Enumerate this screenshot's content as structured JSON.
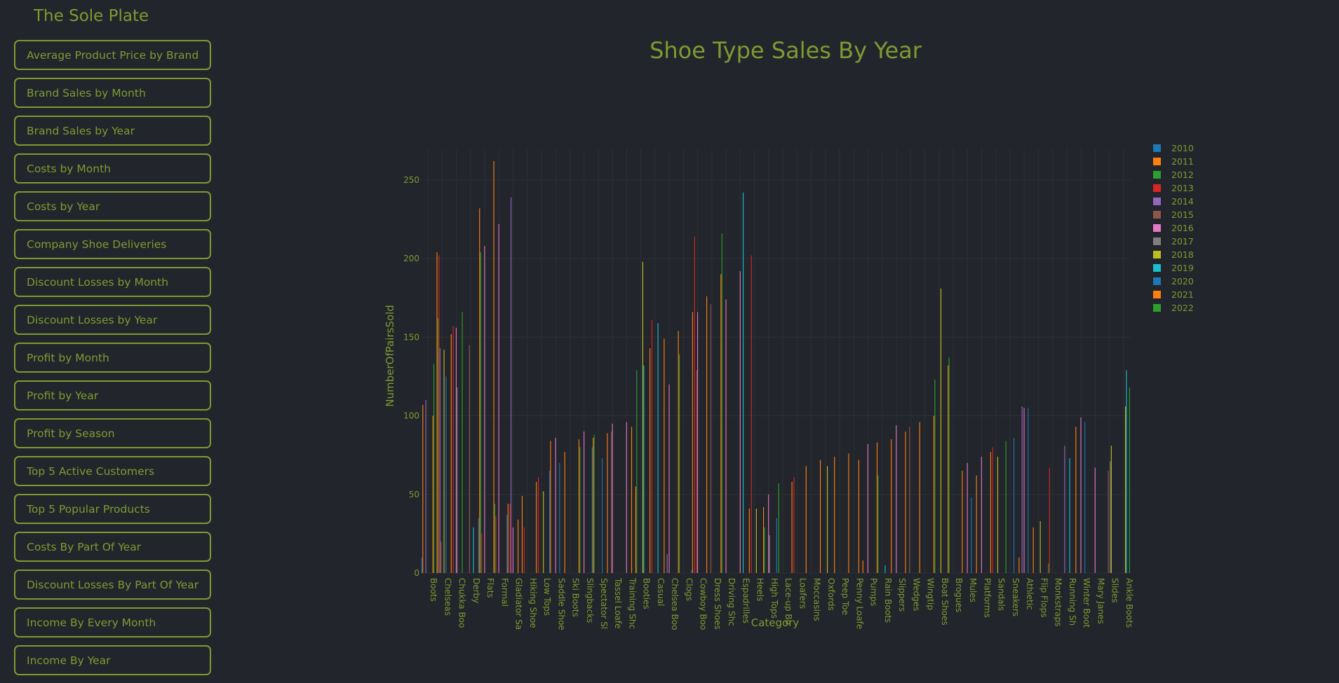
{
  "app": {
    "title": "The Sole Plate"
  },
  "nav": [
    {
      "label": "Average Product Price by Brand"
    },
    {
      "label": "Brand Sales by Month"
    },
    {
      "label": "Brand Sales by Year"
    },
    {
      "label": "Costs by Month"
    },
    {
      "label": "Costs by Year"
    },
    {
      "label": "Company Shoe Deliveries"
    },
    {
      "label": "Discount Losses by Month"
    },
    {
      "label": "Discount Losses by Year"
    },
    {
      "label": "Profit by Month"
    },
    {
      "label": "Profit by Year"
    },
    {
      "label": "Profit by Season"
    },
    {
      "label": "Top 5 Active Customers"
    },
    {
      "label": "Top 5 Popular Products"
    },
    {
      "label": "Costs By Part Of Year"
    },
    {
      "label": "Discount Losses By Part Of Year"
    },
    {
      "label": "Income By Every Month"
    },
    {
      "label": "Income By Year"
    }
  ],
  "colors": {
    "accent": "#7e9a32",
    "background": "#22252b",
    "grid": "#2c3033"
  },
  "chart_data": {
    "type": "bar",
    "title": "Shoe Type Sales By Year",
    "xlabel": "Category",
    "ylabel": "NumberOfPairsSold",
    "ylim": [
      0,
      270
    ],
    "yticks": [
      0,
      50,
      100,
      150,
      200,
      250
    ],
    "legend_position": "top-right",
    "categories": [
      "Boots",
      "Chelseas",
      "Chukka Boo",
      "Derby",
      "Flats",
      "Formal",
      "Gladiator Sa",
      "Hiking Shoe",
      "Low Tops",
      "Saddle Shoe",
      "Ski Boots",
      "Slingbacks",
      "Spectator Sl",
      "Tassel Loafe",
      "Training Shc",
      "Booties",
      "Casual",
      "Chelsea Boo",
      "Clogs",
      "Cowboy Boo",
      "Dress Shoes",
      "Driving Shc",
      "Espadrilles",
      "Heels",
      "High Tops",
      "Lace-up Bo",
      "Loafers",
      "Moccasins",
      "Oxfords",
      "Peep Toe",
      "Penny Loafe",
      "Pumps",
      "Rain Boots",
      "Slippers",
      "Wedges",
      "Wingtip",
      "Boat Shoes",
      "Brogues",
      "Mules",
      "Platforms",
      "Sandals",
      "Sneakers",
      "Athletic",
      "Flip Flops",
      "Monkstraps",
      "Running Sh",
      "Winter Boot",
      "Mary Janes",
      "Slides",
      "Ankle Boots"
    ],
    "series": [
      {
        "name": "2010",
        "color": "#1f77b4",
        "values": [
          10,
          0,
          0,
          0,
          35,
          0,
          37,
          0,
          0,
          65,
          0,
          0,
          80,
          0,
          0,
          0,
          0,
          0,
          0,
          2,
          0,
          0,
          0,
          0,
          0,
          35,
          0,
          0,
          0,
          0,
          0,
          0,
          0,
          0,
          0,
          0,
          0,
          0,
          0,
          0,
          0,
          0,
          0,
          0,
          0,
          0,
          0,
          0,
          0,
          0
        ]
      },
      {
        "name": "2011",
        "color": "#ff7f0e",
        "values": [
          107,
          204,
          152,
          0,
          232,
          262,
          44,
          49,
          58,
          84,
          77,
          85,
          86,
          89,
          0,
          55,
          143,
          149,
          154,
          166,
          176,
          190,
          0,
          41,
          42,
          0,
          58,
          68,
          72,
          74,
          76,
          8,
          83,
          85,
          90,
          96,
          100,
          132,
          65,
          62,
          77,
          0,
          10,
          29,
          0,
          0,
          93,
          0,
          0,
          0
        ]
      },
      {
        "name": "2012",
        "color": "#2ca02c",
        "values": [
          0,
          162,
          0,
          0,
          204,
          44,
          0,
          0,
          0,
          0,
          0,
          80,
          88,
          0,
          0,
          129,
          0,
          0,
          139,
          0,
          0,
          216,
          0,
          0,
          29,
          57,
          0,
          0,
          0,
          0,
          0,
          0,
          62,
          0,
          0,
          0,
          123,
          137,
          0,
          0,
          0,
          84,
          0,
          0,
          6,
          0,
          0,
          0,
          0,
          0
        ]
      },
      {
        "name": "2013",
        "color": "#d62728",
        "values": [
          0,
          202,
          157,
          0,
          25,
          36,
          44,
          29,
          61,
          0,
          0,
          0,
          0,
          0,
          0,
          0,
          161,
          0,
          0,
          214,
          0,
          0,
          0,
          202,
          0,
          0,
          61,
          0,
          0,
          0,
          0,
          0,
          0,
          0,
          0,
          0,
          0,
          0,
          0,
          0,
          80,
          0,
          0,
          0,
          67,
          0,
          0,
          0,
          0,
          0
        ]
      },
      {
        "name": "2014",
        "color": "#9467bd",
        "values": [
          110,
          143,
          0,
          0,
          0,
          0,
          239,
          0,
          0,
          0,
          0,
          0,
          0,
          0,
          0,
          0,
          0,
          12,
          0,
          0,
          0,
          0,
          0,
          0,
          0,
          0,
          0,
          0,
          0,
          0,
          0,
          0,
          0,
          0,
          0,
          0,
          0,
          0,
          0,
          0,
          0,
          0,
          106,
          0,
          0,
          81,
          0,
          0,
          0,
          0
        ]
      },
      {
        "name": "2015",
        "color": "#8c564b",
        "values": [
          0,
          20,
          0,
          145,
          0,
          0,
          0,
          0,
          0,
          0,
          0,
          0,
          0,
          90,
          0,
          0,
          0,
          0,
          0,
          129,
          171,
          0,
          0,
          0,
          0,
          0,
          0,
          0,
          0,
          0,
          0,
          0,
          0,
          0,
          93,
          0,
          0,
          0,
          0,
          0,
          0,
          0,
          0,
          0,
          0,
          0,
          0,
          0,
          65,
          0
        ]
      },
      {
        "name": "2016",
        "color": "#e377c2",
        "values": [
          0,
          0,
          156,
          0,
          208,
          222,
          29,
          0,
          0,
          86,
          0,
          90,
          0,
          95,
          96,
          0,
          0,
          120,
          0,
          166,
          0,
          174,
          192,
          0,
          50,
          0,
          0,
          0,
          0,
          0,
          0,
          82,
          0,
          94,
          0,
          0,
          0,
          0,
          70,
          74,
          0,
          0,
          105,
          0,
          0,
          0,
          99,
          67,
          0,
          0
        ]
      },
      {
        "name": "2017",
        "color": "#7f7f7f",
        "values": [
          0,
          0,
          118,
          0,
          0,
          0,
          0,
          0,
          0,
          0,
          0,
          0,
          0,
          0,
          0,
          0,
          0,
          0,
          0,
          0,
          0,
          0,
          0,
          0,
          24,
          0,
          0,
          0,
          0,
          0,
          0,
          0,
          0,
          0,
          0,
          0,
          0,
          0,
          0,
          0,
          0,
          0,
          0,
          0,
          0,
          0,
          0,
          0,
          71,
          0
        ]
      },
      {
        "name": "2018",
        "color": "#bcbd22",
        "values": [
          0,
          142,
          0,
          0,
          0,
          0,
          0,
          0,
          52,
          0,
          0,
          0,
          0,
          0,
          0,
          198,
          0,
          0,
          0,
          0,
          0,
          0,
          0,
          41,
          0,
          0,
          0,
          0,
          68,
          0,
          0,
          0,
          0,
          0,
          0,
          0,
          181,
          0,
          0,
          0,
          74,
          0,
          0,
          33,
          0,
          0,
          0,
          0,
          81,
          106
        ]
      },
      {
        "name": "2019",
        "color": "#17becf",
        "values": [
          0,
          0,
          0,
          29,
          0,
          0,
          0,
          0,
          0,
          0,
          0,
          0,
          0,
          0,
          0,
          132,
          159,
          0,
          0,
          0,
          0,
          0,
          242,
          0,
          0,
          0,
          0,
          0,
          0,
          0,
          0,
          0,
          5,
          0,
          0,
          0,
          0,
          0,
          0,
          0,
          0,
          0,
          0,
          0,
          0,
          73,
          0,
          0,
          0,
          129
        ]
      },
      {
        "name": "2020",
        "color": "#1f77b4",
        "values": [
          0,
          125,
          0,
          0,
          0,
          0,
          0,
          0,
          0,
          70,
          0,
          0,
          73,
          0,
          0,
          0,
          0,
          0,
          0,
          0,
          0,
          0,
          0,
          0,
          0,
          0,
          0,
          0,
          0,
          0,
          0,
          0,
          0,
          0,
          0,
          0,
          0,
          0,
          48,
          0,
          0,
          86,
          105,
          0,
          0,
          0,
          96,
          0,
          0,
          0
        ]
      },
      {
        "name": "2021",
        "color": "#ff7f0e",
        "values": [
          100,
          0,
          0,
          0,
          0,
          0,
          34,
          0,
          0,
          0,
          0,
          0,
          0,
          0,
          93,
          0,
          0,
          0,
          0,
          0,
          0,
          0,
          0,
          0,
          0,
          0,
          0,
          0,
          0,
          0,
          72,
          0,
          0,
          0,
          0,
          0,
          0,
          0,
          0,
          0,
          0,
          0,
          0,
          0,
          0,
          0,
          0,
          0,
          0,
          0
        ]
      },
      {
        "name": "2022",
        "color": "#2ca02c",
        "values": [
          133,
          0,
          166,
          0,
          0,
          0,
          0,
          0,
          0,
          0,
          0,
          0,
          0,
          0,
          0,
          0,
          0,
          0,
          0,
          0,
          0,
          0,
          0,
          0,
          0,
          0,
          0,
          0,
          0,
          0,
          0,
          0,
          0,
          0,
          0,
          0,
          0,
          0,
          0,
          0,
          0,
          0,
          0,
          0,
          0,
          0,
          0,
          0,
          0,
          118
        ]
      }
    ]
  }
}
